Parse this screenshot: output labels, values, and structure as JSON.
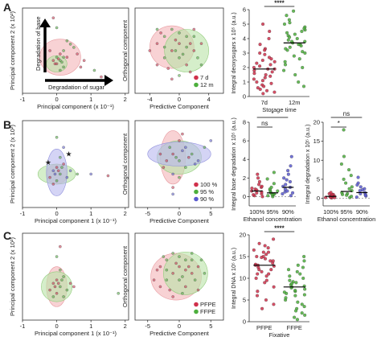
{
  "panel_labels": [
    "A",
    "B",
    "C"
  ],
  "colors": {
    "red": "#d0304b",
    "green": "#4caf3c",
    "blue": "#5a5ad0",
    "pink_fill": "#f4b4b8",
    "green_fill": "#b9e3a6",
    "blue_fill": "#b7b7ee",
    "grey": "#9a9a9a"
  },
  "chart_data": [
    {
      "id": "A1",
      "type": "scatter",
      "xlabel": "Principal component (x 10⁻¹)",
      "ylabel": "Principal component 2 (x 10²)",
      "xticks": [
        "-1",
        "0",
        "1",
        "2"
      ],
      "xlim": [
        -1,
        2.1
      ],
      "ylim": [
        -1,
        1.6
      ],
      "arrow_labels": [
        "Degradation of base",
        "Degradation of sugar"
      ],
      "ellipses": [
        {
          "color": "pink",
          "cx": 0.1,
          "cy": 0.1,
          "rx": 0.6,
          "ry": 0.55
        },
        {
          "color": "green",
          "cx": 0.0,
          "cy": -0.1,
          "rx": 0.3,
          "ry": 0.25
        }
      ],
      "points": [
        [
          0.1,
          0.2
        ],
        [
          0.2,
          0.3
        ],
        [
          0.0,
          -0.1
        ],
        [
          0.1,
          0.0
        ],
        [
          0.3,
          0.1
        ],
        [
          0.5,
          0.4
        ],
        [
          -0.2,
          0.3
        ],
        [
          0.2,
          -0.2
        ],
        [
          0.8,
          0.0
        ],
        [
          1.1,
          -0.3
        ],
        [
          1.3,
          -0.5
        ],
        [
          0.0,
          1.0
        ],
        [
          -0.1,
          1.3
        ],
        [
          0.4,
          0.5
        ],
        [
          0.6,
          0.2
        ],
        [
          0.1,
          -0.3
        ],
        [
          -0.1,
          0.0
        ],
        [
          0.0,
          0.1
        ],
        [
          0.05,
          0.05
        ],
        [
          0.15,
          -0.05
        ],
        [
          -0.05,
          -0.1
        ],
        [
          0.2,
          0.1
        ],
        [
          0.7,
          -0.2
        ],
        [
          0.3,
          0.6
        ]
      ]
    },
    {
      "id": "A2",
      "type": "scatter",
      "xlabel": "Predictive Component",
      "ylabel": "Orthogonal component",
      "xticks": [
        "-4",
        "0",
        "4"
      ],
      "xlim": [
        -6,
        6
      ],
      "ylim": [
        -6,
        6
      ],
      "legend": [
        "7 d",
        "12 m"
      ],
      "ellipses": [
        {
          "color": "pink",
          "cx": -1.0,
          "cy": 0.5,
          "rx": 3.0,
          "ry": 3.0
        },
        {
          "color": "green",
          "cx": 1.0,
          "cy": 0.0,
          "rx": 3.0,
          "ry": 3.0
        }
      ],
      "points": [
        [
          -3,
          1
        ],
        [
          -2,
          2
        ],
        [
          -1,
          0
        ],
        [
          -2,
          -1
        ],
        [
          0,
          1
        ],
        [
          1,
          2
        ],
        [
          2,
          0
        ],
        [
          -1,
          3
        ],
        [
          -3,
          -2
        ],
        [
          0,
          -1
        ],
        [
          1,
          -2
        ],
        [
          2,
          2
        ],
        [
          3,
          1
        ],
        [
          -2,
          0.5
        ],
        [
          -0.5,
          1.5
        ],
        [
          0.5,
          -0.5
        ],
        [
          1.5,
          1
        ],
        [
          2.5,
          -1
        ],
        [
          -1.5,
          -2.5
        ],
        [
          0,
          2.5
        ],
        [
          -2.5,
          2.5
        ],
        [
          1,
          0.5
        ],
        [
          -4,
          0
        ],
        [
          3,
          -2
        ],
        [
          -1,
          -4
        ],
        [
          0,
          -3.5
        ],
        [
          2,
          3
        ],
        [
          -3,
          3
        ],
        [
          1.5,
          -3
        ],
        [
          -0.5,
          0
        ]
      ]
    },
    {
      "id": "A3",
      "type": "scatter",
      "xlabel": "Storage time",
      "ylabel": "Integral deoxysugars x 10⁵ (a.u.)",
      "categories": [
        "7d",
        "12m"
      ],
      "yticks": [
        "0",
        "1",
        "2",
        "3",
        "4",
        "5",
        "6"
      ],
      "ylim": [
        0,
        6
      ],
      "significance": "****",
      "medians": [
        1.9,
        3.7
      ],
      "series": [
        {
          "name": "7d",
          "values": [
            0.2,
            0.4,
            0.6,
            0.8,
            1.0,
            1.2,
            1.4,
            1.5,
            1.7,
            1.9,
            2.1,
            2.3,
            2.5,
            2.7,
            3.0,
            3.3,
            3.6,
            4.0,
            4.5,
            5.0,
            0.9,
            1.1,
            1.3,
            1.6,
            1.8,
            2.0,
            2.2,
            2.4,
            0.5,
            0.7,
            1.9,
            2.6,
            2.9,
            3.2,
            0.3
          ]
        },
        {
          "name": "12m",
          "values": [
            1.0,
            1.5,
            2.0,
            2.4,
            2.8,
            3.0,
            3.2,
            3.4,
            3.6,
            3.7,
            3.8,
            4.0,
            4.2,
            4.4,
            4.6,
            4.8,
            5.0,
            5.3,
            5.6,
            5.9,
            3.1,
            3.3,
            3.5,
            3.9,
            4.1,
            4.3,
            2.6,
            2.2,
            1.8,
            4.5,
            4.7,
            3.6,
            0.7,
            5.1,
            3.8
          ]
        }
      ]
    },
    {
      "id": "B1",
      "type": "scatter",
      "xlabel": "Principal component 1 (x 10⁻¹)",
      "ylabel": "Principal component 2 (x 10²)",
      "xticks": [
        "-1",
        "0",
        "1",
        "2"
      ],
      "xlim": [
        -1,
        2.1
      ],
      "ylim": [
        -1,
        1.6
      ],
      "ellipses": [
        {
          "color": "pink",
          "cx": 0.0,
          "cy": 0.0,
          "rx": 0.3,
          "ry": 0.3
        },
        {
          "color": "green",
          "cx": 0.0,
          "cy": 0.0,
          "rx": 0.55,
          "ry": 0.3
        },
        {
          "color": "blue",
          "cx": 0.0,
          "cy": 0.05,
          "rx": 0.3,
          "ry": 0.7
        }
      ],
      "points": [
        [
          0.0,
          0.2
        ],
        [
          0.1,
          0.0
        ],
        [
          -0.1,
          0.1
        ],
        [
          0.2,
          0.3
        ],
        [
          0.0,
          -0.2
        ],
        [
          0.3,
          -0.1
        ],
        [
          -0.2,
          -0.1
        ],
        [
          0.1,
          0.5
        ],
        [
          0.4,
          0.1
        ],
        [
          -0.1,
          -0.3
        ],
        [
          0.6,
          0.0
        ],
        [
          1.0,
          0.0
        ],
        [
          1.5,
          -0.05
        ],
        [
          0.0,
          1.1
        ],
        [
          0.2,
          0.8
        ],
        [
          0.05,
          0.1
        ],
        [
          0.15,
          0.2
        ],
        [
          -0.05,
          0.0
        ]
      ],
      "stars": [
        [
          0.35,
          0.6
        ],
        [
          -0.25,
          0.35
        ]
      ]
    },
    {
      "id": "B2",
      "type": "scatter",
      "xlabel": "Predictive Component",
      "ylabel": "Orthogonal component",
      "xticks": [
        "-5",
        "0",
        "5"
      ],
      "xlim": [
        -7,
        7
      ],
      "ylim": [
        -7,
        6
      ],
      "legend": [
        "100 %",
        "95 %",
        "90 %"
      ],
      "ellipses": [
        {
          "color": "pink",
          "cx": -1.0,
          "cy": 0.5,
          "rx": 2.0,
          "ry": 4.0
        },
        {
          "color": "green",
          "cx": 0.0,
          "cy": 0.5,
          "rx": 3.5,
          "ry": 2.5
        },
        {
          "color": "blue",
          "cx": 0.0,
          "cy": 1.0,
          "rx": 5.0,
          "ry": 1.8
        }
      ],
      "points": [
        [
          -1,
          1
        ],
        [
          0,
          0
        ],
        [
          1,
          2
        ],
        [
          -2,
          0
        ],
        [
          2,
          1
        ],
        [
          -1,
          -2
        ],
        [
          0,
          3
        ],
        [
          1,
          -1
        ],
        [
          3,
          0
        ],
        [
          -3,
          1
        ],
        [
          4,
          2
        ],
        [
          5,
          3
        ],
        [
          -1,
          -4
        ],
        [
          -0.5,
          0.5
        ],
        [
          0.5,
          1.5
        ],
        [
          1.5,
          0.5
        ],
        [
          -1.5,
          2
        ],
        [
          2.5,
          -0.5
        ],
        [
          -2.5,
          -1
        ],
        [
          0,
          -2.5
        ],
        [
          -1,
          -5
        ],
        [
          0.5,
          4
        ]
      ]
    },
    {
      "id": "B3",
      "type": "scatter",
      "xlabel": "Ethanol concentration",
      "ylabel": "Integral base degradation x 10⁵ (a.u.)",
      "categories": [
        "100%",
        "95%",
        "90%"
      ],
      "yticks": [
        "0",
        "2",
        "4",
        "6",
        "8"
      ],
      "ylim": [
        -1,
        8
      ],
      "significance": [
        {
          "from": 0,
          "to": 1,
          "label": "ns"
        },
        {
          "from": 0,
          "to": 2,
          "label": "*"
        }
      ],
      "medians": [
        0.6,
        0.4,
        1.0
      ],
      "series": [
        {
          "name": "100%",
          "values": [
            0.1,
            0.2,
            0.3,
            0.5,
            0.6,
            0.8,
            1.0,
            1.3,
            1.6,
            2.0,
            2.4,
            0.4,
            0.7,
            0.9,
            0.0,
            1.1
          ]
        },
        {
          "name": "95%",
          "values": [
            0.0,
            0.1,
            0.2,
            0.3,
            0.4,
            0.5,
            0.7,
            1.0,
            1.4,
            1.9,
            2.6,
            0.6,
            0.8,
            0.2,
            0.3
          ]
        },
        {
          "name": "90%",
          "values": [
            0.1,
            0.3,
            0.5,
            0.8,
            1.0,
            1.3,
            1.6,
            2.0,
            2.4,
            2.8,
            3.3,
            0.6,
            1.1,
            0.4,
            1.8,
            4.3
          ]
        }
      ]
    },
    {
      "id": "B4",
      "type": "scatter",
      "xlabel": "Ethanol concentration",
      "ylabel": "Integral degradation x 10⁵ (a.u.)",
      "categories": [
        "100%",
        "95%",
        "90%"
      ],
      "yticks": [
        "0",
        "5",
        "10",
        "15",
        "20"
      ],
      "ylim": [
        -2,
        20
      ],
      "significance": [
        {
          "from": 0,
          "to": 1,
          "label": "*"
        },
        {
          "from": 0,
          "to": 2,
          "label": "ns"
        }
      ],
      "medians": [
        0.5,
        1.8,
        1.5
      ],
      "series": [
        {
          "name": "100%",
          "values": [
            0.1,
            0.2,
            0.3,
            0.4,
            0.5,
            0.6,
            0.8,
            1.0,
            1.2,
            0.3,
            0.7,
            0.9,
            1.5,
            0.2
          ]
        },
        {
          "name": "95%",
          "values": [
            0.2,
            0.5,
            1.0,
            1.5,
            2.0,
            2.5,
            3.0,
            4.0,
            5.0,
            6.0,
            7.5,
            9.0,
            11.0,
            18.0,
            1.2,
            0.8
          ]
        },
        {
          "name": "90%",
          "values": [
            0.3,
            0.6,
            1.0,
            1.5,
            2.0,
            2.5,
            3.0,
            4.0,
            5.5,
            1.2,
            0.8,
            2.2,
            3.5
          ]
        }
      ]
    },
    {
      "id": "C1",
      "type": "scatter",
      "xlabel": "Principal component 1 (x 10⁻¹)",
      "ylabel": "Principal component 2 (x 10²)",
      "xticks": [
        "-1",
        "0",
        "1",
        "2"
      ],
      "xlim": [
        -1,
        2.1
      ],
      "ylim": [
        -1,
        1.6
      ],
      "ellipses": [
        {
          "color": "pink",
          "cx": 0.0,
          "cy": 0.0,
          "rx": 0.3,
          "ry": 0.6
        },
        {
          "color": "green",
          "cx": 0.0,
          "cy": 0.0,
          "rx": 0.45,
          "ry": 0.45
        }
      ],
      "points": [
        [
          0.0,
          0.2
        ],
        [
          0.1,
          0.0
        ],
        [
          -0.1,
          0.1
        ],
        [
          0.2,
          0.3
        ],
        [
          0.0,
          -0.2
        ],
        [
          0.3,
          -0.1
        ],
        [
          -0.2,
          -0.1
        ],
        [
          0.1,
          0.5
        ],
        [
          0.4,
          0.1
        ],
        [
          -0.1,
          -0.3
        ],
        [
          0.5,
          0.0
        ],
        [
          0.0,
          0.9
        ],
        [
          0.1,
          1.2
        ],
        [
          1.8,
          -0.2
        ],
        [
          0.05,
          0.1
        ],
        [
          0.15,
          0.2
        ],
        [
          -0.05,
          0.0
        ],
        [
          0.2,
          -0.3
        ]
      ]
    },
    {
      "id": "C2",
      "type": "scatter",
      "xlabel": "Predictive Component",
      "ylabel": "Orthogonal component",
      "xticks": [
        "-5",
        "0",
        "5"
      ],
      "xlim": [
        -7,
        7
      ],
      "ylim": [
        -7,
        6
      ],
      "legend": [
        "PFPE",
        "FFPE"
      ],
      "ellipses": [
        {
          "color": "pink",
          "cx": -0.5,
          "cy": -0.5,
          "rx": 4.0,
          "ry": 3.5
        },
        {
          "color": "green",
          "cx": 1.0,
          "cy": 0.0,
          "rx": 3.5,
          "ry": 3.2
        }
      ],
      "points": [
        [
          -3,
          1
        ],
        [
          -2,
          2
        ],
        [
          -1,
          0
        ],
        [
          -2,
          -1
        ],
        [
          0,
          1
        ],
        [
          1,
          2
        ],
        [
          2,
          0
        ],
        [
          -1,
          3
        ],
        [
          -3,
          -2
        ],
        [
          0,
          -1
        ],
        [
          1,
          -2
        ],
        [
          2,
          2
        ],
        [
          3,
          1
        ],
        [
          -2,
          0.5
        ],
        [
          -0.5,
          1.5
        ],
        [
          0.5,
          -0.5
        ],
        [
          1.5,
          1
        ],
        [
          2.5,
          -1
        ],
        [
          -1.5,
          -2.5
        ],
        [
          0,
          2.5
        ],
        [
          -4,
          -1
        ],
        [
          4,
          0
        ],
        [
          -1,
          -3.5
        ],
        [
          2,
          3
        ],
        [
          3,
          -2.5
        ],
        [
          -2.5,
          2.5
        ],
        [
          1,
          0.5
        ],
        [
          0.5,
          -3
        ],
        [
          -3.5,
          0.5
        ],
        [
          3.5,
          2
        ]
      ]
    },
    {
      "id": "C3",
      "type": "scatter",
      "xlabel": "Fixative",
      "ylabel": "Integral DNA x 10⁵ (a.u.)",
      "categories": [
        "PFPE",
        "FFPE"
      ],
      "yticks": [
        "0",
        "5",
        "10",
        "15",
        "20"
      ],
      "ylim": [
        0,
        20
      ],
      "significance": "****",
      "medians": [
        13.0,
        8.0
      ],
      "series": [
        {
          "name": "PFPE",
          "values": [
            3,
            5,
            7,
            8,
            9,
            10,
            11,
            12,
            12.5,
            13,
            13.5,
            14,
            14.5,
            15,
            15.5,
            16,
            16.5,
            17,
            18,
            19,
            10.5,
            11.5,
            12,
            14,
            13,
            15,
            9.5,
            6,
            4,
            17.5,
            16,
            13.2,
            12.8,
            11,
            14.8
          ]
        },
        {
          "name": "FFPE",
          "values": [
            0.5,
            1,
            2,
            3,
            4,
            5,
            5.5,
            6,
            6.5,
            7,
            7.5,
            8,
            8.5,
            9,
            9.5,
            10,
            11,
            12,
            13,
            15,
            4.5,
            6.8,
            7.2,
            8.2,
            9.2,
            3.5,
            2.5,
            10.5,
            11.5,
            12.5,
            1.5,
            6.2,
            7.8,
            14,
            8.8
          ]
        }
      ]
    }
  ]
}
